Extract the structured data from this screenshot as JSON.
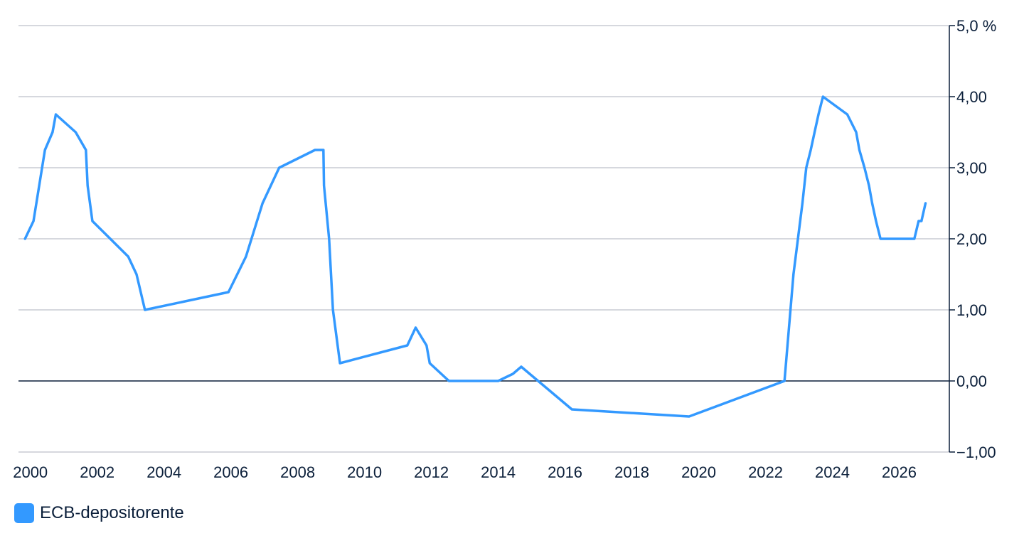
{
  "chart_data": {
    "type": "line",
    "x_ticks": [
      "2000",
      "2002",
      "2004",
      "2006",
      "2008",
      "2010",
      "2012",
      "2014",
      "2016",
      "2018",
      "2020",
      "2022",
      "2024",
      "2026"
    ],
    "y_ticks": [
      {
        "value": 5,
        "label": "5,0 %"
      },
      {
        "value": 4,
        "label": "4,00"
      },
      {
        "value": 3,
        "label": "3,00"
      },
      {
        "value": 2,
        "label": "2,00"
      },
      {
        "value": 1,
        "label": "1,00"
      },
      {
        "value": 0,
        "label": "0,00"
      },
      {
        "value": -1,
        "label": "−1,00"
      }
    ],
    "xlim": [
      1999.9,
      2027.5
    ],
    "ylim": [
      -1,
      5
    ],
    "grid": true,
    "legend_position": "bottom-left",
    "series": [
      {
        "name": "ECB-depositorente",
        "color": "#3399ff",
        "points": [
          [
            "1999-11-04",
            2.0
          ],
          [
            "2000-02-04",
            2.25
          ],
          [
            "2000-06-09",
            3.25
          ],
          [
            "2000-08-31",
            3.5
          ],
          [
            "2000-10-06",
            3.75
          ],
          [
            "2001-05-11",
            3.5
          ],
          [
            "2001-08-31",
            3.25
          ],
          [
            "2001-09-18",
            2.75
          ],
          [
            "2001-11-09",
            2.25
          ],
          [
            "2002-12-06",
            1.75
          ],
          [
            "2003-03-07",
            1.5
          ],
          [
            "2003-06-06",
            1.0
          ],
          [
            "2005-12-06",
            1.25
          ],
          [
            "2006-06-15",
            1.75
          ],
          [
            "2006-12-13",
            2.5
          ],
          [
            "2007-06-13",
            3.0
          ],
          [
            "2008-07-09",
            3.25
          ],
          [
            "2008-10-09",
            3.25
          ],
          [
            "2008-10-15",
            2.75
          ],
          [
            "2008-12-10",
            2.0
          ],
          [
            "2009-01-21",
            1.0
          ],
          [
            "2009-04-08",
            0.25
          ],
          [
            "2011-04-13",
            0.5
          ],
          [
            "2011-07-13",
            0.75
          ],
          [
            "2011-11-09",
            0.5
          ],
          [
            "2011-12-14",
            0.25
          ],
          [
            "2012-07-11",
            0.0
          ],
          [
            "2014-01-01",
            0.0
          ],
          [
            "2014-06-11",
            0.1
          ],
          [
            "2014-09-10",
            0.2
          ],
          [
            "2016-03-16",
            -0.4
          ],
          [
            "2019-09-18",
            -0.5
          ],
          [
            "2022-07-27",
            0.0
          ],
          [
            "2022-09-14",
            0.75
          ],
          [
            "2022-11-02",
            1.5
          ],
          [
            "2022-12-21",
            2.0
          ],
          [
            "2023-02-08",
            2.5
          ],
          [
            "2023-03-22",
            3.0
          ],
          [
            "2023-05-10",
            3.25
          ],
          [
            "2023-06-21",
            3.5
          ],
          [
            "2023-08-02",
            3.75
          ],
          [
            "2023-09-20",
            4.0
          ],
          [
            "2024-06-12",
            3.75
          ],
          [
            "2024-09-18",
            3.5
          ],
          [
            "2024-10-23",
            3.25
          ],
          [
            "2024-12-18",
            3.0
          ],
          [
            "2025-02-05",
            2.75
          ],
          [
            "2025-03-12",
            2.5
          ],
          [
            "2025-04-23",
            2.25
          ],
          [
            "2025-06-11",
            2.0
          ],
          [
            "2026-06-15",
            2.0
          ],
          [
            "2026-08-01",
            2.25
          ],
          [
            "2026-09-01",
            2.25
          ],
          [
            "2026-10-15",
            2.5
          ]
        ]
      }
    ]
  }
}
